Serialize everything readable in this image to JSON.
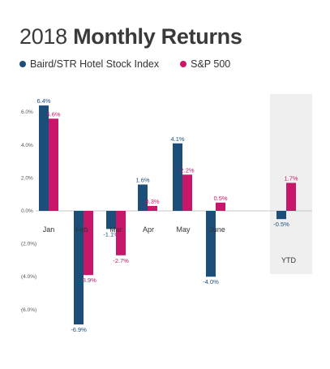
{
  "title_prefix": "2018",
  "title_main": "Monthly Returns",
  "colors": {
    "baird": "#1b4f7a",
    "sp500": "#c8166b",
    "ytd_bg": "#efefef"
  },
  "chart_data": {
    "type": "bar",
    "title": "2018 Monthly Returns",
    "categories": [
      "Jan",
      "Feb",
      "Mar",
      "Apr",
      "May",
      "June",
      "YTD"
    ],
    "series": [
      {
        "name": "Baird/STR Hotel Stock Index",
        "values": [
          6.4,
          -6.9,
          -1.1,
          1.6,
          4.1,
          -4.0,
          -0.5
        ],
        "labels": [
          "6.4%",
          "-6.9%",
          "-1.1%",
          "1.6%",
          "4.1%",
          "-4.0%",
          "-0.5%"
        ]
      },
      {
        "name": "S&P 500",
        "values": [
          5.6,
          -3.9,
          -2.7,
          0.3,
          2.2,
          0.5,
          1.7
        ],
        "labels": [
          "5.6%",
          "-3.9%",
          "-2.7%",
          "0.3%",
          "2.2%",
          "0.5%",
          "1.7%"
        ]
      }
    ],
    "yticks": [
      6,
      4,
      2,
      0,
      -2,
      -4,
      -6
    ],
    "ytick_labels": [
      "6.0%",
      "4.0%",
      "2.0%",
      "0.0%",
      "(2.0%)",
      "(4.0%)",
      "(6.0%)"
    ],
    "ylim": [
      -7,
      7
    ],
    "grid": false,
    "legend": "top-left",
    "highlight_category": "YTD"
  }
}
